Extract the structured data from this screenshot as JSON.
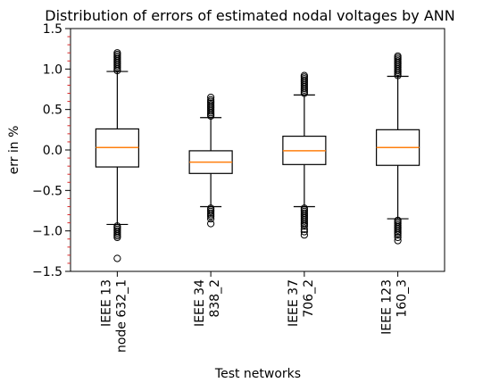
{
  "chart_data": {
    "type": "box",
    "title": "Distribution of errors of estimated nodal voltages by ANN",
    "xlabel": "Test networks",
    "ylabel": "err in %",
    "ylim": [
      -1.5,
      1.5
    ],
    "yticks": [
      -1.5,
      -1.0,
      -0.5,
      0.0,
      0.5,
      1.0,
      1.5
    ],
    "ytick_labels": [
      "−1.5",
      "−1.0",
      "−0.5",
      "0.0",
      "0.5",
      "1.0",
      "1.5"
    ],
    "grid": false,
    "colors": {
      "median": "#ff7f0e",
      "box": "#000000",
      "minor_tick": "#d62728"
    },
    "categories": [
      {
        "line1": "IEEE 13",
        "line2": "node 632_1"
      },
      {
        "line1": "IEEE 34",
        "line2": "838_2"
      },
      {
        "line1": "IEEE 37",
        "line2": "706_2"
      },
      {
        "line1": "IEEE 123",
        "line2": "160_3"
      }
    ],
    "boxes": [
      {
        "median": 0.03,
        "q1": -0.21,
        "q3": 0.26,
        "whisker_low": -0.92,
        "whisker_high": 0.97,
        "fliers_high": [
          0.98,
          1.0,
          1.02,
          1.04,
          1.06,
          1.08,
          1.1,
          1.12,
          1.14,
          1.16,
          1.18,
          1.2
        ],
        "fliers_low": [
          -0.94,
          -0.96,
          -0.98,
          -1.0,
          -1.02,
          -1.04,
          -1.06,
          -1.08,
          -1.34
        ]
      },
      {
        "median": -0.15,
        "q1": -0.29,
        "q3": -0.01,
        "whisker_low": -0.7,
        "whisker_high": 0.4,
        "fliers_high": [
          0.42,
          0.44,
          0.46,
          0.48,
          0.5,
          0.52,
          0.54,
          0.56,
          0.58,
          0.6,
          0.62,
          0.65
        ],
        "fliers_low": [
          -0.72,
          -0.74,
          -0.76,
          -0.78,
          -0.8,
          -0.82,
          -0.85,
          -0.91
        ]
      },
      {
        "median": -0.01,
        "q1": -0.18,
        "q3": 0.17,
        "whisker_low": -0.7,
        "whisker_high": 0.68,
        "fliers_high": [
          0.7,
          0.72,
          0.74,
          0.76,
          0.78,
          0.8,
          0.82,
          0.84,
          0.86,
          0.88,
          0.9,
          0.92
        ],
        "fliers_low": [
          -0.72,
          -0.74,
          -0.76,
          -0.78,
          -0.8,
          -0.82,
          -0.84,
          -0.86,
          -0.88,
          -0.9,
          -0.92,
          -0.94,
          -0.98,
          -1.01,
          -1.05
        ]
      },
      {
        "median": 0.03,
        "q1": -0.19,
        "q3": 0.25,
        "whisker_low": -0.85,
        "whisker_high": 0.91,
        "fliers_high": [
          0.92,
          0.94,
          0.96,
          0.98,
          1.0,
          1.02,
          1.04,
          1.06,
          1.08,
          1.1,
          1.12,
          1.14,
          1.16
        ],
        "fliers_low": [
          -0.87,
          -0.89,
          -0.91,
          -0.93,
          -0.95,
          -0.97,
          -0.99,
          -1.01,
          -1.03,
          -1.05,
          -1.08,
          -1.12
        ]
      }
    ]
  }
}
